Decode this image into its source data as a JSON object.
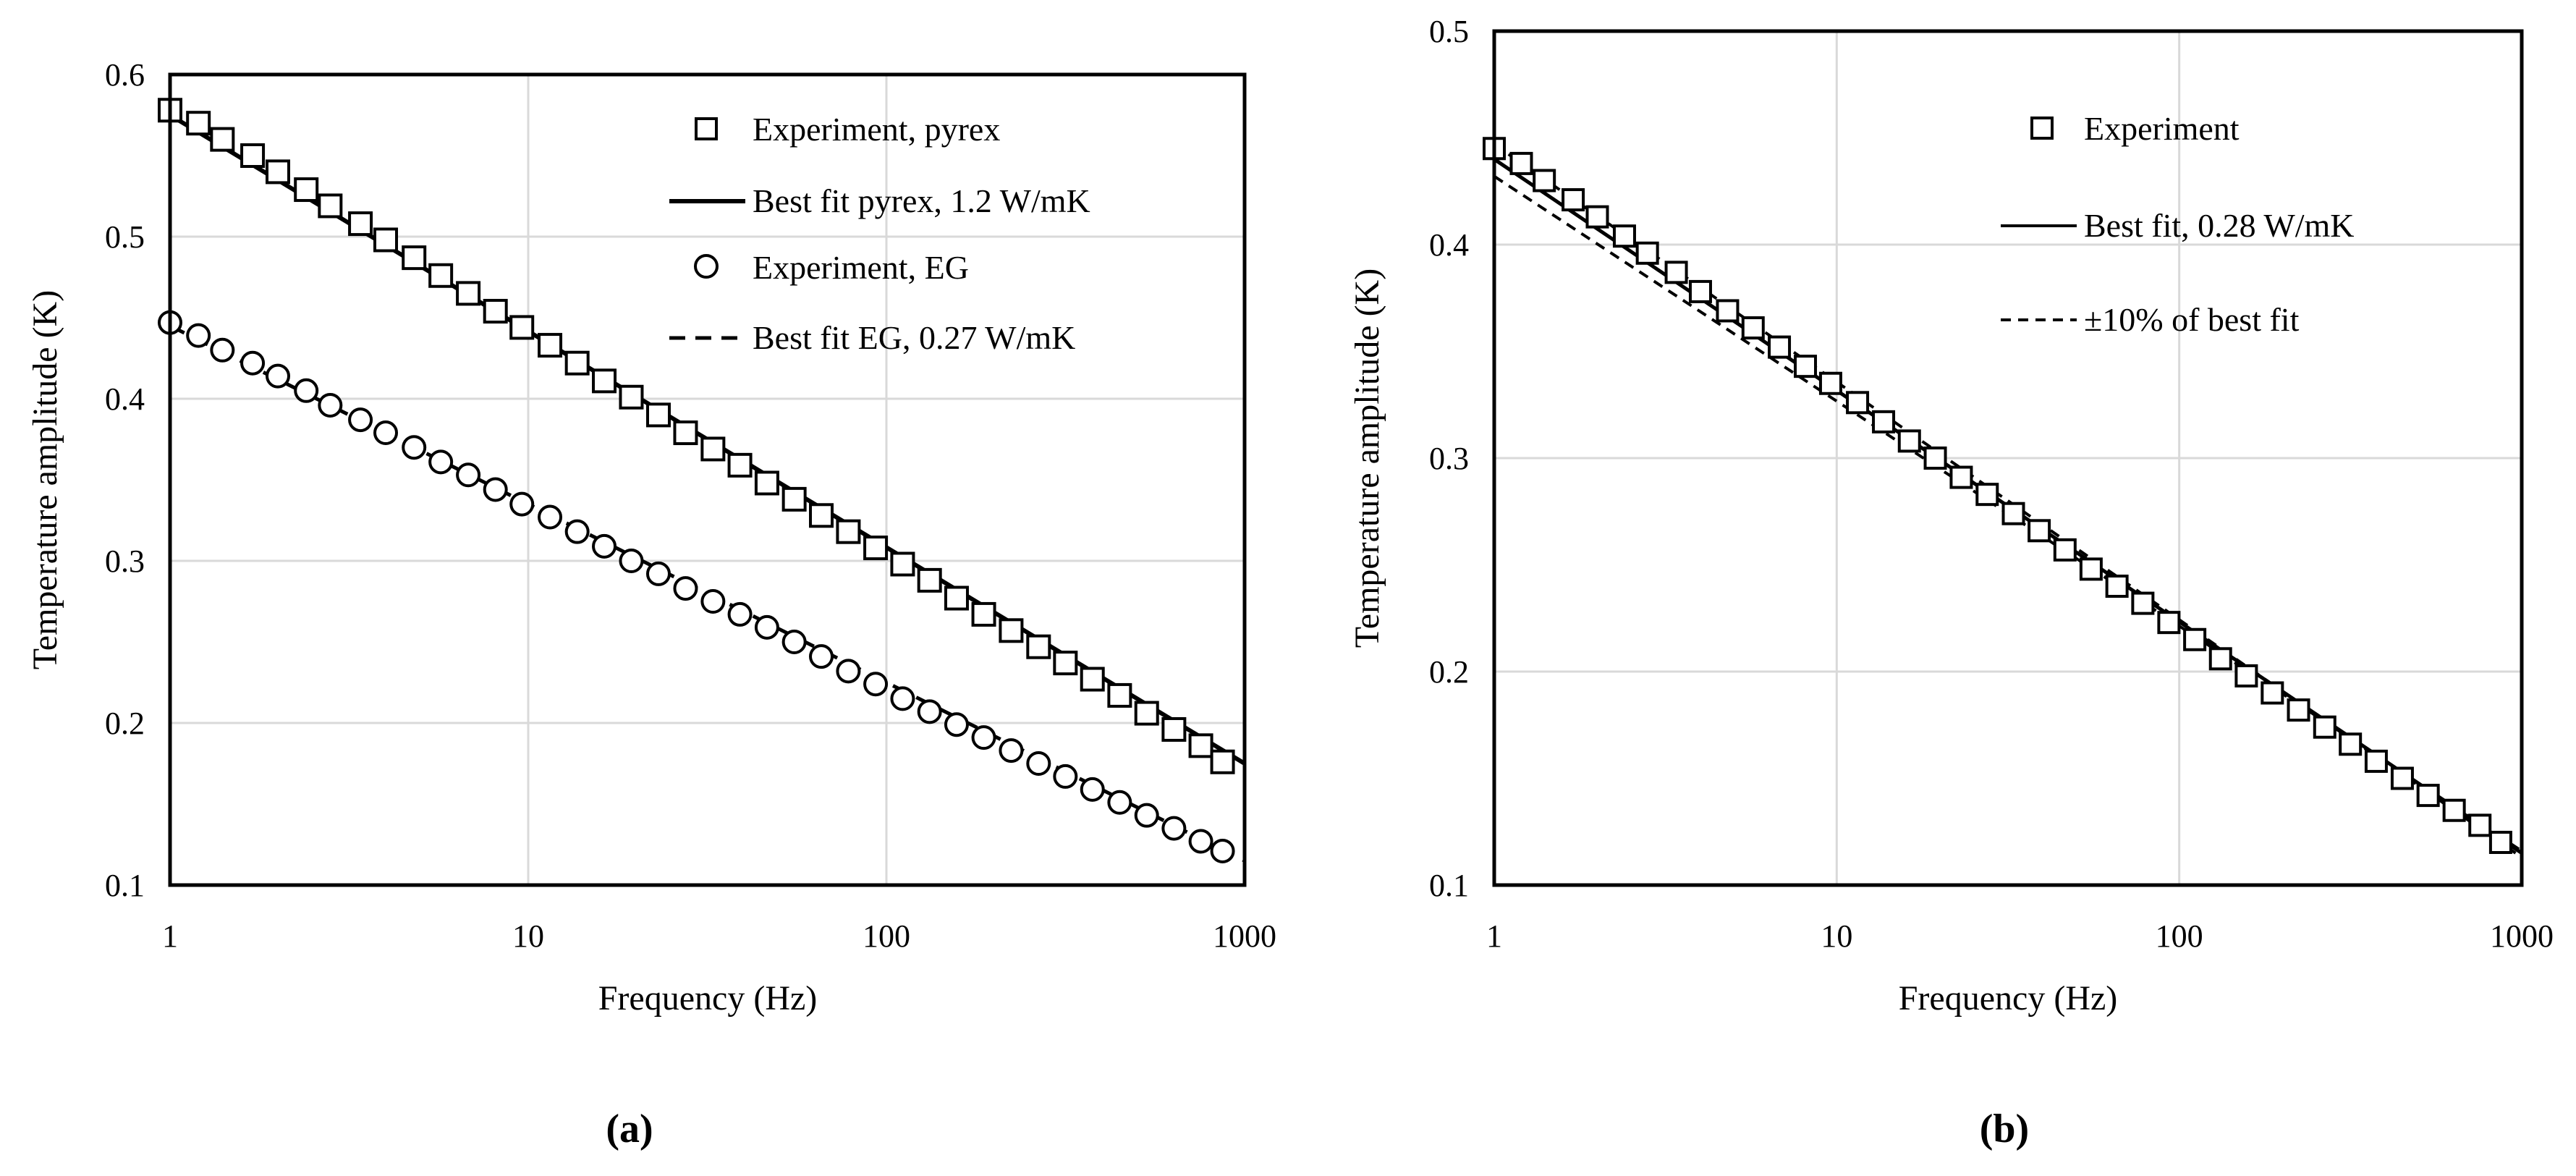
{
  "chart_data": [
    {
      "id": "a",
      "type": "scatter",
      "panel_label": "(a)",
      "xlabel": "Frequency (Hz)",
      "ylabel": "Temperature amplitude  (K)",
      "xscale": "log",
      "xlim": [
        1,
        1000
      ],
      "ylim": [
        0.1,
        0.6
      ],
      "xticks": [
        1,
        10,
        100,
        1000
      ],
      "xtick_labels": [
        "1",
        "10",
        "100",
        "1000"
      ],
      "yticks": [
        0.1,
        0.2,
        0.3,
        0.4,
        0.5,
        0.6
      ],
      "ytick_labels": [
        "0.1",
        "0.2",
        "0.3",
        "0.4",
        "0.5",
        "0.6"
      ],
      "grid": true,
      "legend_position": "top-right",
      "series": [
        {
          "name": "Experiment, pyrex",
          "kind": "markers",
          "marker": "square",
          "x": [
            1,
            1.2,
            1.4,
            1.7,
            2,
            2.4,
            2.8,
            3.4,
            4,
            4.8,
            5.7,
            6.8,
            8.1,
            9.6,
            11.5,
            13.7,
            16.3,
            19.4,
            23.1,
            27.5,
            32.8,
            39,
            46.4,
            55.3,
            65.8,
            78.3,
            93.3,
            111,
            132,
            157,
            187,
            223,
            266,
            316,
            376,
            448,
            533,
            635,
            755,
            868
          ],
          "y": [
            0.578,
            0.57,
            0.56,
            0.55,
            0.54,
            0.529,
            0.519,
            0.508,
            0.498,
            0.487,
            0.476,
            0.465,
            0.454,
            0.444,
            0.433,
            0.422,
            0.411,
            0.401,
            0.39,
            0.379,
            0.369,
            0.359,
            0.348,
            0.338,
            0.328,
            0.318,
            0.308,
            0.298,
            0.288,
            0.277,
            0.267,
            0.257,
            0.247,
            0.237,
            0.227,
            0.217,
            0.206,
            0.196,
            0.186,
            0.176
          ]
        },
        {
          "name": "Best fit pyrex, 1.2 W/mK",
          "kind": "line",
          "style": "solid",
          "x": [
            1,
            1000
          ],
          "y": [
            0.575,
            0.175
          ]
        },
        {
          "name": "Experiment, EG",
          "kind": "markers",
          "marker": "circle",
          "x": [
            1,
            1.2,
            1.4,
            1.7,
            2,
            2.4,
            2.8,
            3.4,
            4,
            4.8,
            5.7,
            6.8,
            8.1,
            9.6,
            11.5,
            13.7,
            16.3,
            19.4,
            23.1,
            27.5,
            32.8,
            39,
            46.4,
            55.3,
            65.8,
            78.3,
            93.3,
            111,
            132,
            157,
            187,
            223,
            266,
            316,
            376,
            448,
            533,
            635,
            755,
            868
          ],
          "y": [
            0.447,
            0.439,
            0.43,
            0.422,
            0.414,
            0.405,
            0.396,
            0.387,
            0.379,
            0.37,
            0.361,
            0.353,
            0.344,
            0.335,
            0.327,
            0.318,
            0.309,
            0.3,
            0.292,
            0.283,
            0.275,
            0.267,
            0.259,
            0.25,
            0.241,
            0.232,
            0.224,
            0.215,
            0.207,
            0.199,
            0.191,
            0.183,
            0.175,
            0.167,
            0.159,
            0.151,
            0.143,
            0.135,
            0.127,
            0.121
          ]
        },
        {
          "name": "Best fit EG, 0.27 W/mK",
          "kind": "line",
          "style": "dashed",
          "x": [
            1,
            1000
          ],
          "y": [
            0.445,
            0.115
          ]
        }
      ]
    },
    {
      "id": "b",
      "type": "scatter",
      "panel_label": "(b)",
      "xlabel": "Frequency (Hz)",
      "ylabel": "Temperature amplitude  (K)",
      "xscale": "log",
      "xlim": [
        1,
        1000
      ],
      "ylim": [
        0.1,
        0.5
      ],
      "xticks": [
        1,
        10,
        100,
        1000
      ],
      "xtick_labels": [
        "1",
        "10",
        "100",
        "1000"
      ],
      "yticks": [
        0.1,
        0.2,
        0.3,
        0.4,
        0.5
      ],
      "ytick_labels": [
        "0.1",
        "0.2",
        "0.3",
        "0.4",
        "0.5"
      ],
      "grid": true,
      "legend_position": "top-right",
      "series": [
        {
          "name": "Experiment",
          "kind": "markers",
          "marker": "square",
          "x": [
            1,
            1.2,
            1.4,
            1.7,
            2,
            2.4,
            2.8,
            3.4,
            4,
            4.8,
            5.7,
            6.8,
            8.1,
            9.6,
            11.5,
            13.7,
            16.3,
            19.4,
            23.1,
            27.5,
            32.8,
            39,
            46.4,
            55.3,
            65.8,
            78.3,
            93.3,
            111,
            132,
            157,
            187,
            223,
            266,
            316,
            376,
            448,
            533,
            635,
            755,
            868
          ],
          "y": [
            0.445,
            0.438,
            0.43,
            0.421,
            0.413,
            0.404,
            0.396,
            0.387,
            0.378,
            0.369,
            0.361,
            0.352,
            0.343,
            0.335,
            0.326,
            0.317,
            0.308,
            0.3,
            0.291,
            0.283,
            0.274,
            0.266,
            0.257,
            0.248,
            0.24,
            0.232,
            0.223,
            0.215,
            0.206,
            0.198,
            0.19,
            0.182,
            0.174,
            0.166,
            0.158,
            0.15,
            0.142,
            0.135,
            0.128,
            0.12
          ]
        },
        {
          "name": "Best fit, 0.28 W/mK",
          "kind": "line",
          "style": "solid",
          "x": [
            1,
            1000
          ],
          "y": [
            0.44,
            0.115
          ]
        },
        {
          "name": "±10% of best fit",
          "kind": "line",
          "style": "dashed",
          "legend": true,
          "x": [
            1,
            1000
          ],
          "y": [
            0.432,
            0.116
          ]
        },
        {
          "name": "±10% of best fit (upper)",
          "kind": "line",
          "style": "dashed",
          "legend": false,
          "x": [
            1,
            1000
          ],
          "y": [
            0.447,
            0.113
          ]
        }
      ]
    }
  ]
}
